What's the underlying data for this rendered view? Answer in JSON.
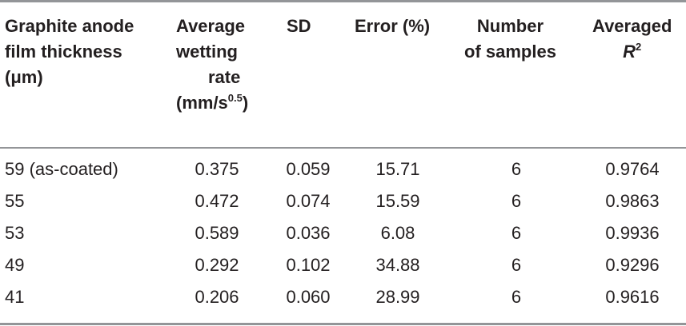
{
  "headers": {
    "thickness": [
      "Graphite anode",
      "film thickness",
      "(μm)"
    ],
    "rate": [
      "Average",
      "wetting",
      "rate",
      "(mm/s",
      "0.5",
      ")"
    ],
    "sd": "SD",
    "error": "Error (%)",
    "samples": [
      "Number",
      "of samples"
    ],
    "r2": [
      "Averaged",
      "R",
      "2"
    ]
  },
  "rows": [
    {
      "thickness": "59 (as-coated)",
      "rate": "0.375",
      "sd": "0.059",
      "error": "15.71",
      "samples": "6",
      "r2": "0.9764"
    },
    {
      "thickness": "55",
      "rate": "0.472",
      "sd": "0.074",
      "error": "15.59",
      "samples": "6",
      "r2": "0.9863"
    },
    {
      "thickness": "53",
      "rate": "0.589",
      "sd": "0.036",
      "error": "6.08",
      "samples": "6",
      "r2": "0.9936"
    },
    {
      "thickness": "49",
      "rate": "0.292",
      "sd": "0.102",
      "error": "34.88",
      "samples": "6",
      "r2": "0.9296"
    },
    {
      "thickness": "41",
      "rate": "0.206",
      "sd": "0.060",
      "error": "28.99",
      "samples": "6",
      "r2": "0.9616"
    }
  ]
}
